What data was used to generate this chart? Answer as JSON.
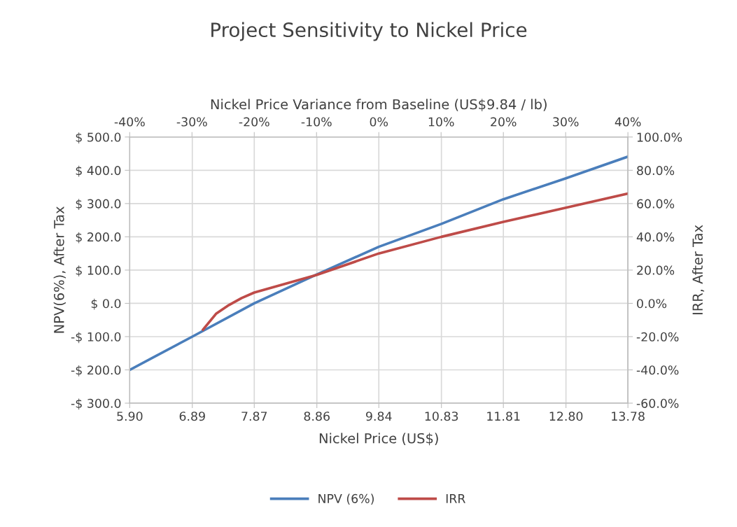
{
  "chart_data": {
    "type": "line",
    "title": "Project Sensitivity to Nickel Price",
    "xlabel": "Nickel Price (US$)",
    "x2label": "Nickel Price Variance from Baseline (US$9.84 / lb)",
    "ylabel": "NPV(6%), After Tax",
    "y2label": "IRR, After Tax",
    "series": [
      {
        "name": "NPV (6%)",
        "color": "#4a7ebb",
        "x": [
          5.9,
          6.89,
          7.87,
          8.86,
          9.84,
          10.83,
          11.81,
          12.8,
          13.78
        ],
        "values": [
          -200,
          -100,
          0,
          87,
          170,
          239,
          313,
          376,
          441
        ]
      },
      {
        "name": "IRR",
        "color": "#be4b48",
        "axis": "y2",
        "x": [
          7.06,
          7.27,
          7.47,
          7.67,
          7.87,
          8.86,
          9.84,
          10.83,
          11.81,
          12.8,
          13.78
        ],
        "values": [
          -15.8,
          -6.1,
          -1.0,
          3.2,
          6.5,
          17.1,
          30,
          40,
          49,
          57.5,
          66
        ]
      }
    ],
    "xlim": [
      5.9,
      13.78
    ],
    "xticks": [
      {
        "value": 5.9,
        "label": "5.90"
      },
      6.89,
      7.87,
      8.86,
      9.84,
      10.83,
      11.81,
      {
        "value": 12.8,
        "label": "12.80"
      },
      13.78
    ],
    "x2lim": [
      -40,
      40
    ],
    "x2ticks": [
      {
        "value": -40,
        "label": "-40%"
      },
      {
        "value": -30,
        "label": "-30%"
      },
      {
        "value": -20,
        "label": "-20%"
      },
      {
        "value": -10,
        "label": "-10%"
      },
      {
        "value": 0,
        "label": "0%"
      },
      {
        "value": 10,
        "label": "10%"
      },
      {
        "value": 20,
        "label": "20%"
      },
      {
        "value": 30,
        "label": "30%"
      },
      {
        "value": 40,
        "label": "40%"
      }
    ],
    "ylim": [
      -300,
      500
    ],
    "yticks": [
      {
        "value": -300,
        "label": "-$ 300.0"
      },
      {
        "value": -200,
        "label": "-$ 200.0"
      },
      {
        "value": -100,
        "label": "-$ 100.0"
      },
      {
        "value": 0,
        "label": "$ 0.0"
      },
      {
        "value": 100,
        "label": "$ 100.0"
      },
      {
        "value": 200,
        "label": "$ 200.0"
      },
      {
        "value": 300,
        "label": "$ 300.0"
      },
      {
        "value": 400,
        "label": "$ 400.0"
      },
      {
        "value": 500,
        "label": "$ 500.0"
      }
    ],
    "y2lim": [
      -60,
      100
    ],
    "y2ticks": [
      {
        "value": -60,
        "label": "-60.0%"
      },
      {
        "value": -40,
        "label": "-40.0%"
      },
      {
        "value": -20,
        "label": "-20.0%"
      },
      {
        "value": 0,
        "label": "0.0%"
      },
      {
        "value": 20,
        "label": "20.0%"
      },
      {
        "value": 40,
        "label": "40.0%"
      },
      {
        "value": 60,
        "label": "60.0%"
      },
      {
        "value": 80,
        "label": "80.0%"
      },
      {
        "value": 100,
        "label": "100.0%"
      }
    ],
    "grid": true,
    "legend": "bottom",
    "marker": "none",
    "line_style": "solid"
  }
}
